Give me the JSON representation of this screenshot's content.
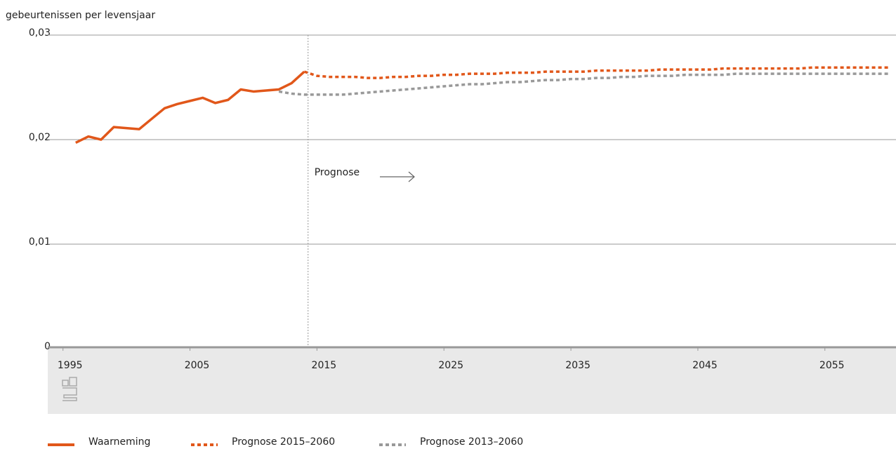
{
  "chart_data": {
    "type": "line",
    "y_axis_label": "gebeurtenissen per levensjaar",
    "x": [
      1996,
      1997,
      1998,
      1999,
      2000,
      2001,
      2002,
      2003,
      2004,
      2005,
      2006,
      2007,
      2008,
      2009,
      2010,
      2011,
      2012,
      2013,
      2014,
      2015,
      2016,
      2017,
      2018,
      2019,
      2020,
      2021,
      2022,
      2023,
      2024,
      2025,
      2026,
      2027,
      2028,
      2029,
      2030,
      2031,
      2032,
      2033,
      2034,
      2035,
      2036,
      2037,
      2038,
      2039,
      2040,
      2041,
      2042,
      2043,
      2044,
      2045,
      2046,
      2047,
      2048,
      2049,
      2050,
      2051,
      2052,
      2053,
      2054,
      2055,
      2056,
      2057,
      2058,
      2059,
      2060
    ],
    "series": [
      {
        "name": "Waarneming",
        "color": "#e1571a",
        "dash": "solid",
        "values": [
          0.0197,
          0.0203,
          0.02,
          0.0212,
          0.0211,
          0.021,
          0.022,
          0.023,
          0.0234,
          0.0237,
          0.024,
          0.0235,
          0.0238,
          0.0248,
          0.0246,
          0.0247,
          0.0248,
          0.0254,
          0.0265,
          null,
          null,
          null,
          null,
          null,
          null,
          null,
          null,
          null,
          null,
          null,
          null,
          null,
          null,
          null,
          null,
          null,
          null,
          null,
          null,
          null,
          null,
          null,
          null,
          null,
          null,
          null,
          null,
          null,
          null,
          null,
          null,
          null,
          null,
          null,
          null,
          null,
          null,
          null,
          null,
          null,
          null,
          null,
          null,
          null,
          null
        ]
      },
      {
        "name": "Prognose 2015–2060",
        "color": "#e1571a",
        "dash": "dotted",
        "values": [
          null,
          null,
          null,
          null,
          null,
          null,
          null,
          null,
          null,
          null,
          null,
          null,
          null,
          null,
          null,
          null,
          null,
          null,
          0.0265,
          0.0261,
          0.026,
          0.026,
          0.026,
          0.0259,
          0.0259,
          0.026,
          0.026,
          0.0261,
          0.0261,
          0.0262,
          0.0262,
          0.0263,
          0.0263,
          0.0263,
          0.0264,
          0.0264,
          0.0264,
          0.0265,
          0.0265,
          0.0265,
          0.0265,
          0.0266,
          0.0266,
          0.0266,
          0.0266,
          0.0266,
          0.0267,
          0.0267,
          0.0267,
          0.0267,
          0.0267,
          0.0268,
          0.0268,
          0.0268,
          0.0268,
          0.0268,
          0.0268,
          0.0268,
          0.0269,
          0.0269,
          0.0269,
          0.0269,
          0.0269,
          0.0269,
          0.0269
        ]
      },
      {
        "name": "Prognose 2013–2060",
        "color": "#999999",
        "dash": "dotted",
        "values": [
          null,
          null,
          null,
          null,
          null,
          null,
          null,
          null,
          null,
          null,
          null,
          null,
          null,
          null,
          null,
          null,
          0.0246,
          0.0244,
          0.0243,
          0.0243,
          0.0243,
          0.0243,
          0.0244,
          0.0245,
          0.0246,
          0.0247,
          0.0248,
          0.0249,
          0.025,
          0.0251,
          0.0252,
          0.0253,
          0.0253,
          0.0254,
          0.0255,
          0.0255,
          0.0256,
          0.0257,
          0.0257,
          0.0258,
          0.0258,
          0.0259,
          0.0259,
          0.026,
          0.026,
          0.0261,
          0.0261,
          0.0261,
          0.0262,
          0.0262,
          0.0262,
          0.0262,
          0.0263,
          0.0263,
          0.0263,
          0.0263,
          0.0263,
          0.0263,
          0.0263,
          0.0263,
          0.0263,
          0.0263,
          0.0263,
          0.0263,
          0.0263
        ]
      }
    ],
    "xlim": [
      1993.8,
      2060.6
    ],
    "xticks": [
      1995,
      2005,
      2015,
      2025,
      2035,
      2045,
      2055
    ],
    "ylim": [
      0,
      0.03
    ],
    "yticks": [
      0,
      {
        "value": 0.01,
        "label": "0,01"
      },
      {
        "value": 0.02,
        "label": "0,02"
      },
      {
        "value": 0.03,
        "label": "0,03"
      }
    ],
    "grid": true,
    "annotation": {
      "text": "Prognose",
      "x": 2014.3
    },
    "legend": "bottom"
  }
}
